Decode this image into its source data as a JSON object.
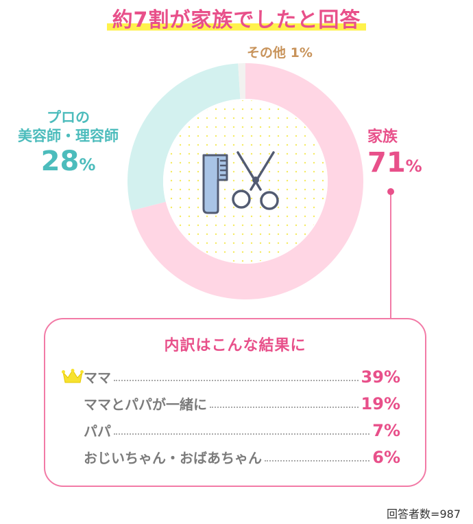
{
  "title": "約7割が家族でしたと回答",
  "chart_data": {
    "type": "pie",
    "slices": [
      {
        "name": "家族",
        "value": 71,
        "color": "#ffd6e4"
      },
      {
        "name_line1": "プロの",
        "name_line2": "美容師・理容師",
        "value": 28,
        "color": "#d3f1ef"
      },
      {
        "name": "その他",
        "value": 1,
        "color": "#f2f2f0"
      }
    ],
    "labels": {
      "other": "その他 1%",
      "pro_line1": "プロの",
      "pro_line2": "美容師・理容師",
      "pro_value": "28",
      "family_name": "家族",
      "family_value": "71",
      "percent": "%"
    },
    "center_icon": "comb-and-scissors-icon"
  },
  "breakdown": {
    "title": "内訳はこんな結果に",
    "items": [
      {
        "label": "ママ",
        "value": "39%"
      },
      {
        "label": "ママとパパが一緒に",
        "value": "19%"
      },
      {
        "label": "パパ",
        "value": "7%"
      },
      {
        "label": "おじいちゃん・おばあちゃん",
        "value": "6%"
      }
    ],
    "top_icon": "crown-icon"
  },
  "footer": "回答者数=987",
  "colors": {
    "accent_pink": "#e8508a",
    "teal": "#4cbcbc",
    "highlight": "#fff24c",
    "border_pink": "#f27aa6"
  }
}
